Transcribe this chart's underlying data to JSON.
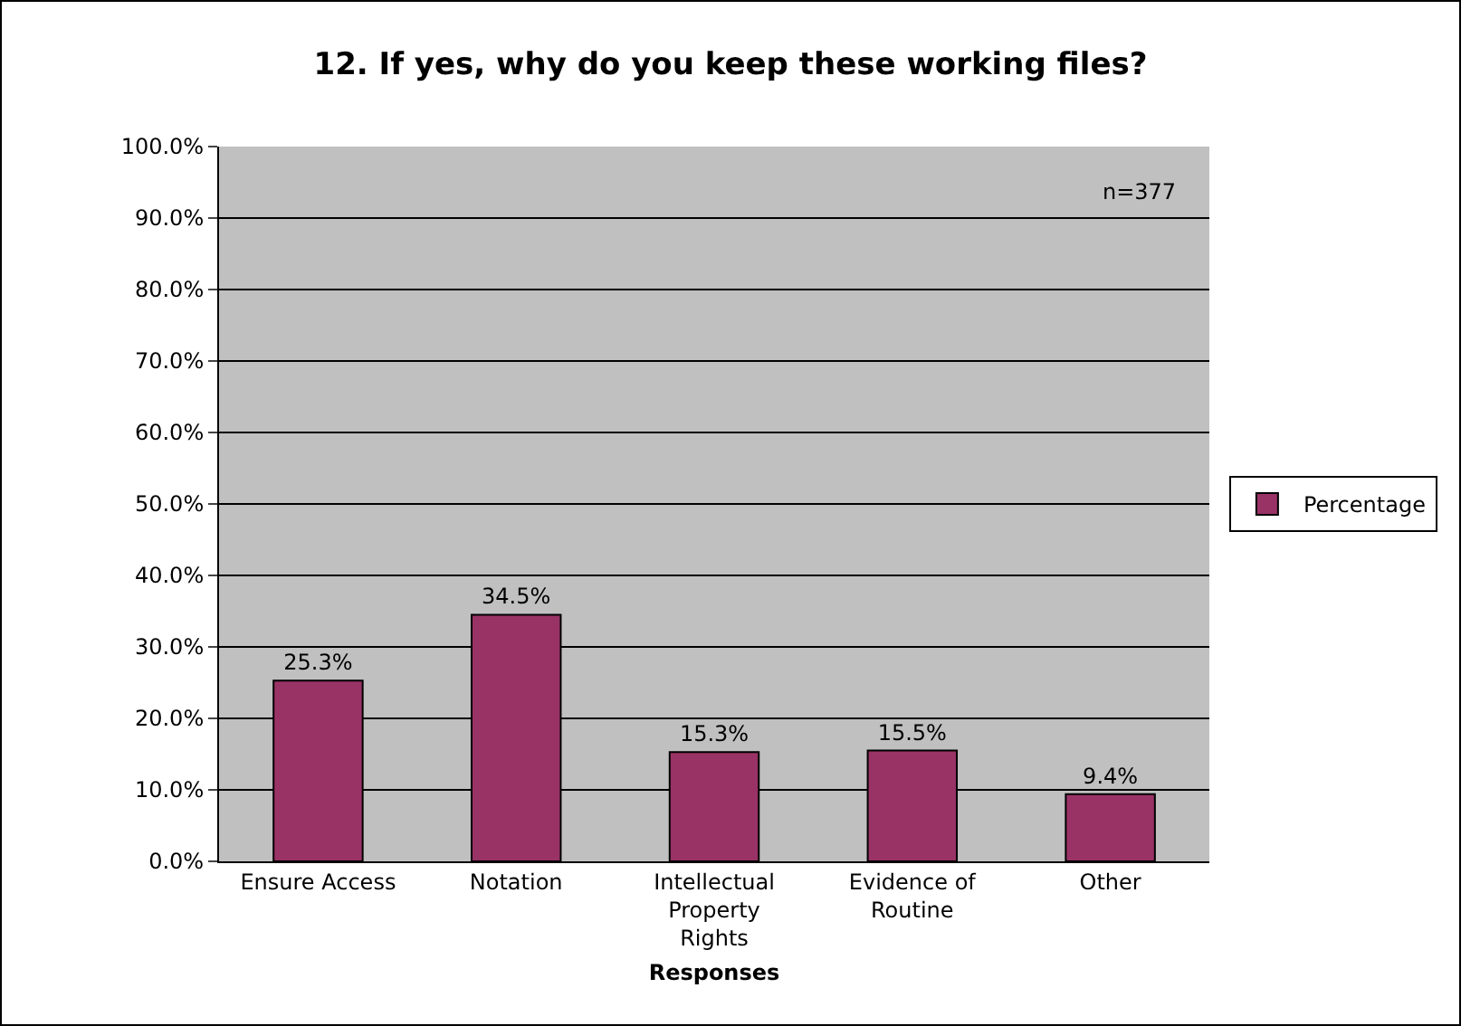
{
  "chart_data": {
    "type": "bar",
    "title": "12. If yes, why do you keep these working files?",
    "xlabel": "Responses",
    "categories": [
      "Ensure Access",
      "Notation",
      "Intellectual Property Rights",
      "Evidence of Routine",
      "Other"
    ],
    "series": [
      {
        "name": "Percentage",
        "color": "#993366",
        "values": [
          25.3,
          34.5,
          15.3,
          15.5,
          9.4
        ],
        "value_labels": [
          "25.3%",
          "34.5%",
          "15.3%",
          "15.5%",
          "9.4%"
        ]
      }
    ],
    "ylim": [
      0,
      100
    ],
    "yticks": [
      {
        "value": 0,
        "label": "0.0%"
      },
      {
        "value": 10,
        "label": "10.0%"
      },
      {
        "value": 20,
        "label": "20.0%"
      },
      {
        "value": 30,
        "label": "30.0%"
      },
      {
        "value": 40,
        "label": "40.0%"
      },
      {
        "value": 50,
        "label": "50.0%"
      },
      {
        "value": 60,
        "label": "60.0%"
      },
      {
        "value": 70,
        "label": "70.0%"
      },
      {
        "value": 80,
        "label": "80.0%"
      },
      {
        "value": 90,
        "label": "90.0%"
      },
      {
        "value": 100,
        "label": "100.0%"
      }
    ],
    "grid": "y",
    "legend": "right",
    "annotations": [
      "n=377"
    ]
  }
}
